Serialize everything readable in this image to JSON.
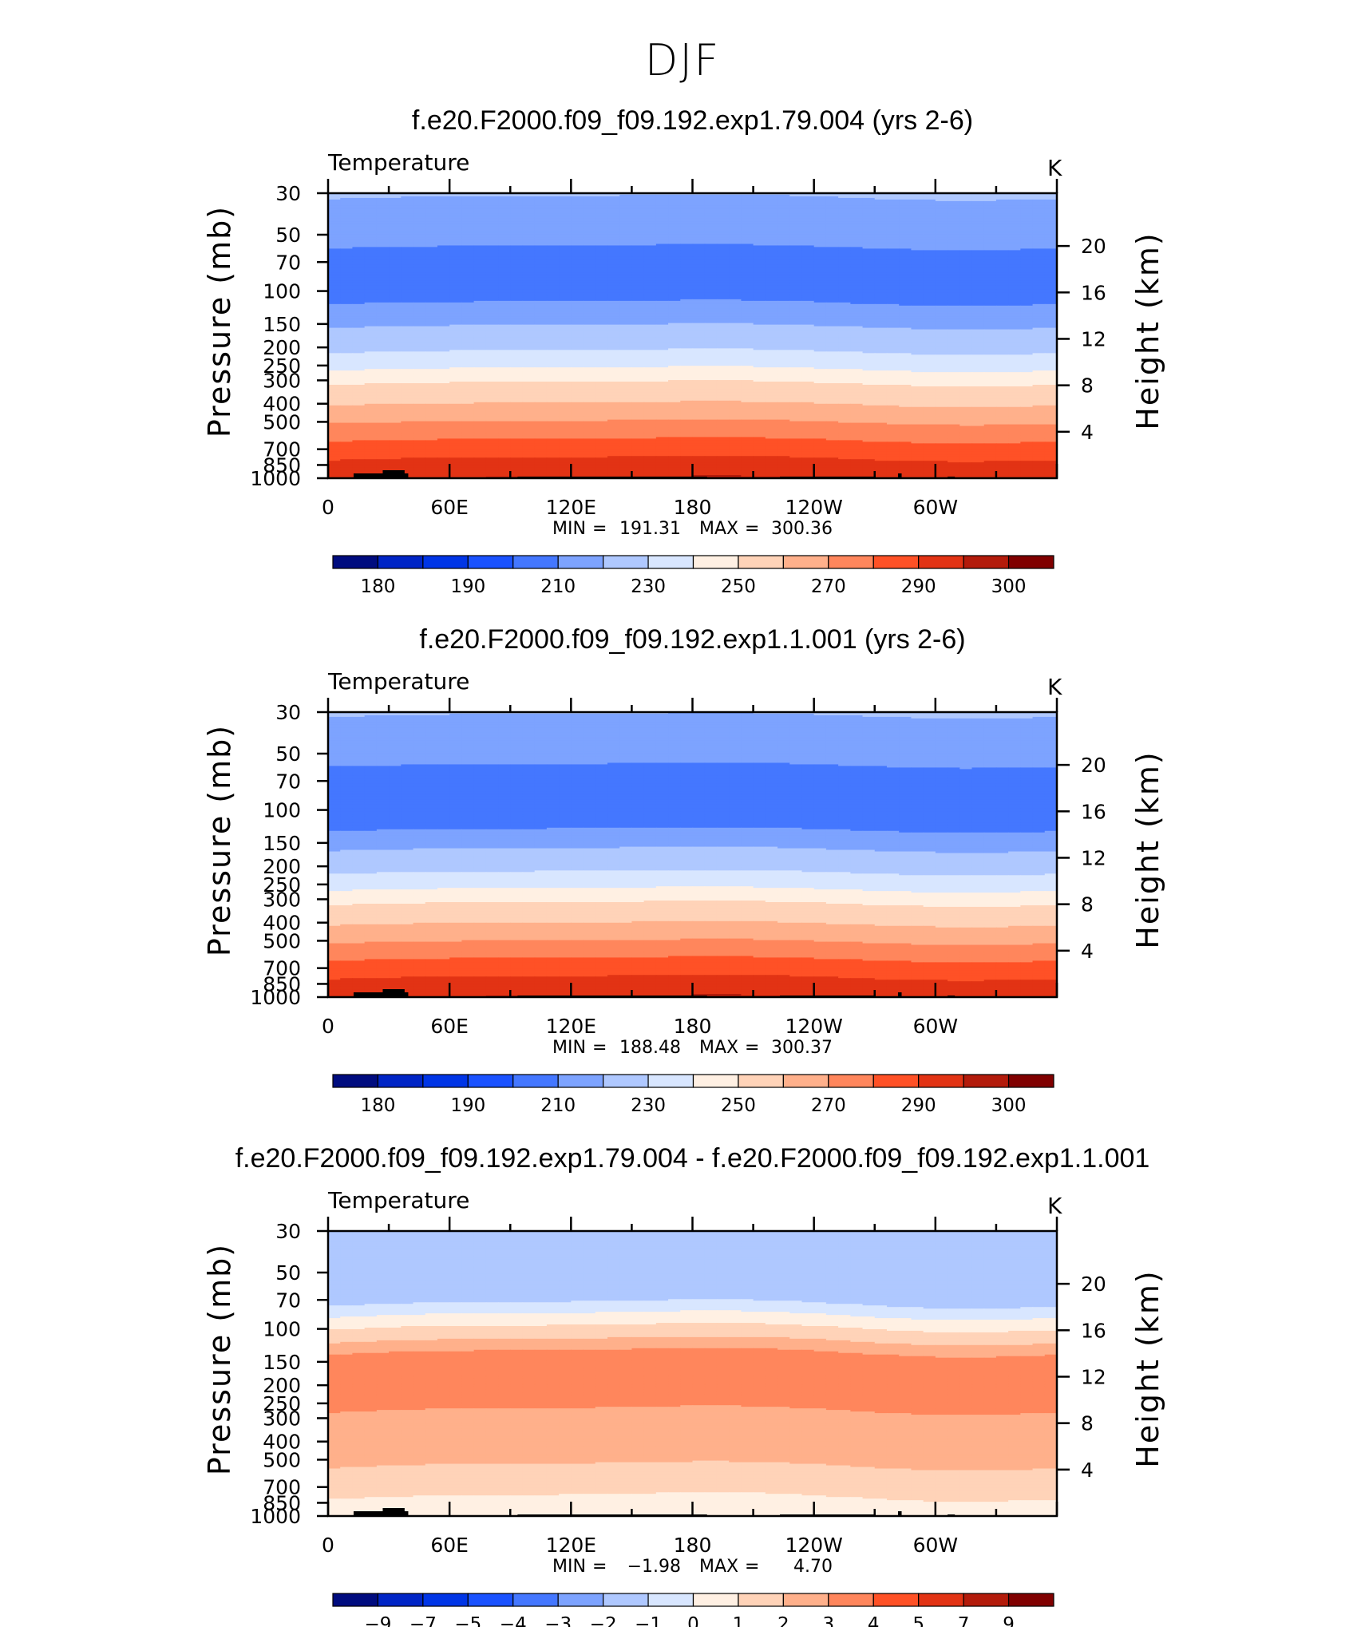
{
  "figure": {
    "main_title": "DJF"
  },
  "colors": {
    "palette": [
      "#000c7f",
      "#0025c6",
      "#0035e6",
      "#1a52ff",
      "#4477ff",
      "#7da3ff",
      "#afc8ff",
      "#d8e6ff",
      "#fff0e3",
      "#ffd3b8",
      "#ffb08b",
      "#ff865c",
      "#ff5126",
      "#e23314",
      "#b31b0b",
      "#800000"
    ],
    "topography": "#000000"
  },
  "chart_data": [
    {
      "type": "heatmap",
      "title": "f.e20.F2000.f09_f09.192.exp1.79.004 (yrs 2-6)",
      "variable": "Temperature",
      "units": "K",
      "ylabel_left": "Pressure (mb)",
      "ylabel_right": "Height (km)",
      "x_ticks": [
        "0",
        "60E",
        "120E",
        "180",
        "120W",
        "60W"
      ],
      "y_ticks": [
        "30",
        "50",
        "70",
        "100",
        "150",
        "200",
        "250",
        "300",
        "400",
        "500",
        "700",
        "850",
        "1000"
      ],
      "y_ticks_right": [
        "20",
        "16",
        "12",
        "8",
        "4"
      ],
      "stats": {
        "min_label": "MIN",
        "min": "191.31",
        "max_label": "MAX",
        "max": "300.36"
      },
      "colorbar_labels": [
        "180",
        "190",
        "210",
        "230",
        "250",
        "270",
        "290",
        "300"
      ],
      "levels": [
        175,
        180,
        185,
        190,
        200,
        210,
        220,
        230,
        240,
        250,
        260,
        270,
        280,
        290,
        295,
        300
      ],
      "profile": [
        {
          "p": 30,
          "v": 214
        },
        {
          "p": 33,
          "v": 206
        },
        {
          "p": 50,
          "v": 204
        },
        {
          "p": 62,
          "v": 198
        },
        {
          "p": 100,
          "v": 197
        },
        {
          "p": 135,
          "v": 204
        },
        {
          "p": 160,
          "v": 212
        },
        {
          "p": 190,
          "v": 216
        },
        {
          "p": 220,
          "v": 222
        },
        {
          "p": 270,
          "v": 232
        },
        {
          "p": 320,
          "v": 242
        },
        {
          "p": 420,
          "v": 252
        },
        {
          "p": 520,
          "v": 262
        },
        {
          "p": 650,
          "v": 272
        },
        {
          "p": 800,
          "v": 281
        },
        {
          "p": 900,
          "v": 286
        },
        {
          "p": 1000,
          "v": 290
        }
      ]
    },
    {
      "type": "heatmap",
      "title": "f.e20.F2000.f09_f09.192.exp1.1.001 (yrs 2-6)",
      "variable": "Temperature",
      "units": "K",
      "ylabel_left": "Pressure (mb)",
      "ylabel_right": "Height (km)",
      "x_ticks": [
        "0",
        "60E",
        "120E",
        "180",
        "120W",
        "60W"
      ],
      "y_ticks": [
        "30",
        "50",
        "70",
        "100",
        "150",
        "200",
        "250",
        "300",
        "400",
        "500",
        "700",
        "850",
        "1000"
      ],
      "y_ticks_right": [
        "20",
        "16",
        "12",
        "8",
        "4"
      ],
      "stats": {
        "min_label": "MIN",
        "min": "188.48",
        "max_label": "MAX",
        "max": "300.37"
      },
      "colorbar_labels": [
        "180",
        "190",
        "210",
        "230",
        "250",
        "270",
        "290",
        "300"
      ],
      "levels": [
        175,
        180,
        185,
        190,
        200,
        210,
        220,
        230,
        240,
        250,
        260,
        270,
        280,
        290,
        295,
        300
      ],
      "profile": [
        {
          "p": 30,
          "v": 213
        },
        {
          "p": 33,
          "v": 205
        },
        {
          "p": 50,
          "v": 203
        },
        {
          "p": 65,
          "v": 197
        },
        {
          "p": 100,
          "v": 195
        },
        {
          "p": 138,
          "v": 202
        },
        {
          "p": 165,
          "v": 211
        },
        {
          "p": 195,
          "v": 216
        },
        {
          "p": 225,
          "v": 222
        },
        {
          "p": 275,
          "v": 232
        },
        {
          "p": 325,
          "v": 242
        },
        {
          "p": 425,
          "v": 252
        },
        {
          "p": 525,
          "v": 262
        },
        {
          "p": 650,
          "v": 272
        },
        {
          "p": 800,
          "v": 281
        },
        {
          "p": 900,
          "v": 286
        },
        {
          "p": 1000,
          "v": 290
        }
      ]
    },
    {
      "type": "heatmap",
      "title": "f.e20.F2000.f09_f09.192.exp1.79.004 - f.e20.F2000.f09_f09.192.exp1.1.001",
      "variable": "Temperature",
      "units": "K",
      "ylabel_left": "Pressure (mb)",
      "ylabel_right": "Height (km)",
      "x_ticks": [
        "0",
        "60E",
        "120E",
        "180",
        "120W",
        "60W"
      ],
      "y_ticks": [
        "30",
        "50",
        "70",
        "100",
        "150",
        "200",
        "250",
        "300",
        "400",
        "500",
        "700",
        "850",
        "1000"
      ],
      "y_ticks_right": [
        "20",
        "16",
        "12",
        "8",
        "4"
      ],
      "stats": {
        "min_label": "MIN",
        "min": "−1.98",
        "max_label": "MAX",
        "max": "4.70"
      },
      "colorbar_labels": [
        "−9",
        "−7",
        "−5",
        "−4",
        "−3",
        "−2",
        "−1",
        "0",
        "1",
        "2",
        "3",
        "4",
        "5",
        "7",
        "9"
      ],
      "levels": [
        -9,
        -7,
        -5,
        -4,
        -3,
        -2,
        -1,
        0,
        1,
        2,
        3,
        4,
        5,
        7,
        9
      ],
      "profile": [
        {
          "p": 30,
          "v": -1.5
        },
        {
          "p": 68,
          "v": -1.5
        },
        {
          "p": 78,
          "v": -0.5
        },
        {
          "p": 90,
          "v": 0.5
        },
        {
          "p": 105,
          "v": 1.5
        },
        {
          "p": 125,
          "v": 2.5
        },
        {
          "p": 140,
          "v": 3.5
        },
        {
          "p": 250,
          "v": 3.5
        },
        {
          "p": 290,
          "v": 2.5
        },
        {
          "p": 500,
          "v": 2.5
        },
        {
          "p": 570,
          "v": 1.5
        },
        {
          "p": 1000,
          "v": 0.5
        }
      ]
    }
  ]
}
